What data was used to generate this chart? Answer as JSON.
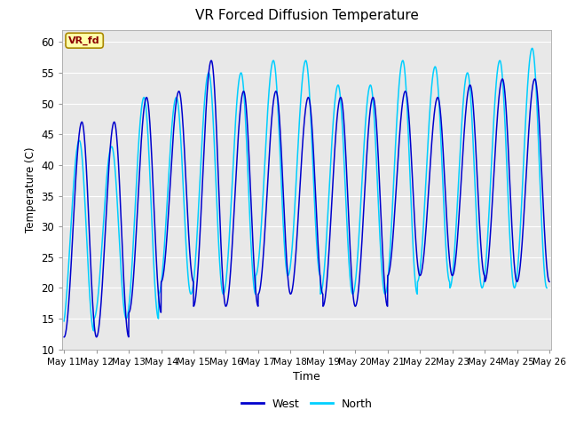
{
  "title": "VR Forced Diffusion Temperature",
  "xlabel": "Time",
  "ylabel": "Temperature (C)",
  "annotation_text": "VR_fd",
  "ylim": [
    10,
    62
  ],
  "west_color": "#0000CD",
  "north_color": "#00CFFF",
  "background_color": "#E8E8E8",
  "grid_color": "#FFFFFF",
  "x_tick_labels": [
    "May 11",
    "May 12",
    "May 13",
    "May 14",
    "May 15",
    "May 16",
    "May 17",
    "May 18",
    "May 19",
    "May 20",
    "May 21",
    "May 22",
    "May 23",
    "May 24",
    "May 25",
    "May 26"
  ],
  "y_ticks": [
    10,
    15,
    20,
    25,
    30,
    35,
    40,
    45,
    50,
    55,
    60
  ],
  "west_mins": [
    12.0,
    12.0,
    16.0,
    21.0,
    17.0,
    17.0,
    19.0,
    19.0,
    17.0,
    17.0,
    22.0,
    22.0,
    22.0,
    21.0,
    21.0
  ],
  "west_maxs": [
    47.0,
    47.0,
    51.0,
    52.0,
    57.0,
    52.0,
    52.0,
    51.0,
    51.0,
    51.0,
    52.0,
    51.0,
    53.0,
    54.0,
    54.0
  ],
  "north_mins": [
    13.0,
    15.0,
    15.0,
    19.0,
    19.0,
    19.0,
    22.0,
    22.0,
    19.0,
    19.0,
    19.0,
    21.0,
    20.0,
    20.0,
    20.0
  ],
  "north_maxs": [
    44.0,
    43.0,
    51.0,
    51.0,
    55.0,
    55.0,
    57.0,
    57.0,
    53.0,
    53.0,
    57.0,
    56.0,
    55.0,
    57.0,
    59.0
  ],
  "north_lead": 0.08,
  "pts_per_day": 200
}
